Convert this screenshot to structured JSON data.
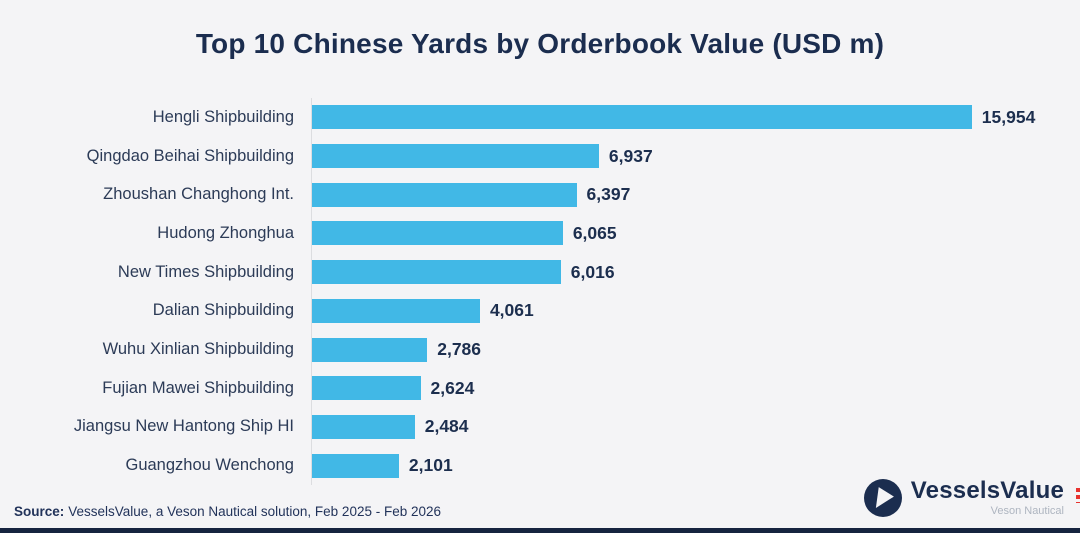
{
  "title": "Top 10 Chinese Yards by Orderbook Value (USD m)",
  "chart_data": {
    "type": "bar",
    "orientation": "horizontal",
    "title": "Top 10 Chinese Yards by Orderbook Value (USD m)",
    "xlabel": "",
    "ylabel": "",
    "categories": [
      "Hengli Shipbuilding",
      "Qingdao Beihai Shipbuilding",
      "Zhoushan Changhong Int.",
      "Hudong Zhonghua",
      "New Times Shipbuilding",
      "Dalian Shipbuilding",
      "Wuhu Xinlian Shipbuilding",
      "Fujian Mawei Shipbuilding",
      "Jiangsu New Hantong Ship HI",
      "Guangzhou Wenchong"
    ],
    "values": [
      15954,
      6937,
      6397,
      6065,
      6016,
      4061,
      2786,
      2624,
      2484,
      2101
    ],
    "value_labels": [
      "15,954",
      "6,937",
      "6,397",
      "6,065",
      "6,016",
      "4,061",
      "2,786",
      "2,624",
      "2,484",
      "2,101"
    ],
    "xlim": [
      0,
      18570
    ],
    "grid": false,
    "legend": "none",
    "bar_color": "#41b8e6",
    "value_label_position": "end-of-bar"
  },
  "footer": {
    "source_label": "Source:",
    "source_text": "VesselsValue, a Veson Nautical solution, Feb 2025 - Feb 2026"
  },
  "logo": {
    "name": "VesselsValue",
    "subtitle": "Veson Nautical"
  },
  "colors": {
    "background": "#f4f4f6",
    "bar": "#41b8e6",
    "title_text": "#1b2d4f",
    "label_text": "#2c3b57",
    "value_text": "#1c2e4e",
    "axis_line": "#dcdde0",
    "logo_navy": "#1b2d4f",
    "logo_subtitle_gray": "#aeb5c0",
    "bottom_strip": "#16243f",
    "edge_artifact_red": "#e8322e"
  }
}
